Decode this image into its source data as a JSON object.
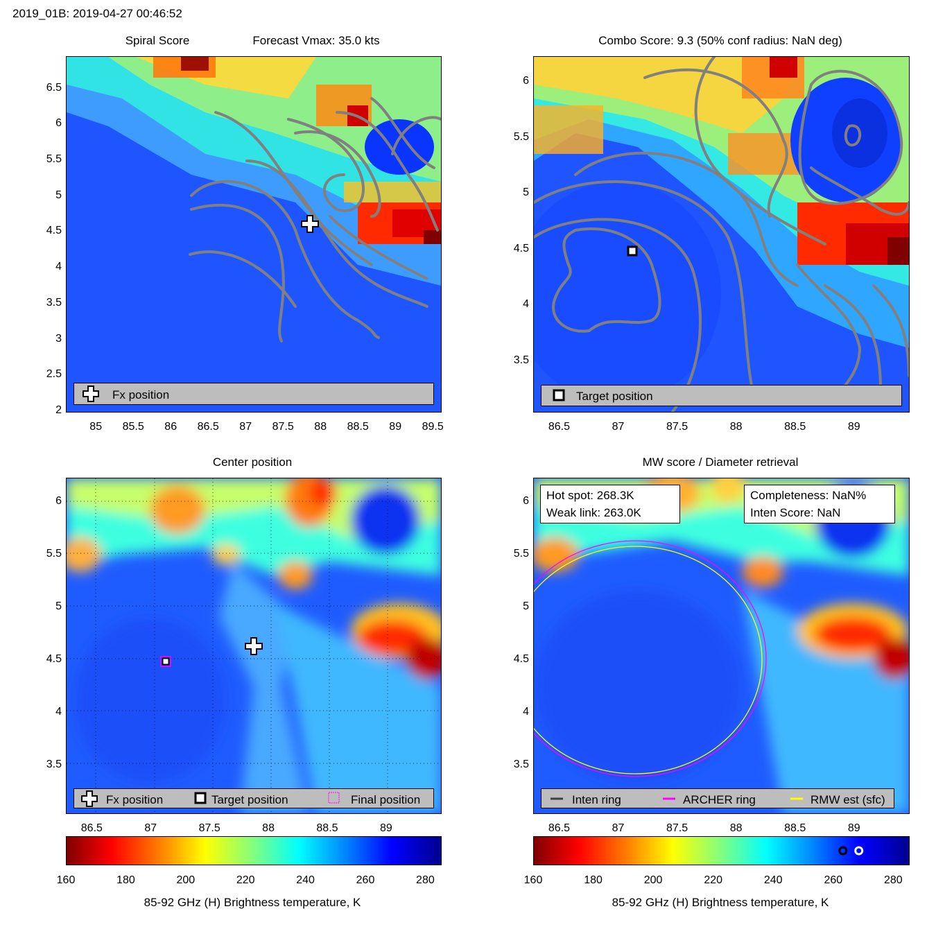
{
  "figure_title": "2019_01B: 2019-04-27 00:46:52",
  "colorbar_label": "85-92 GHz (H) Brightness temperature, K",
  "colorbar_ticks": [
    "160",
    "180",
    "200",
    "220",
    "240",
    "260",
    "280"
  ],
  "colorbar_range": [
    160,
    285
  ],
  "colorbar_markers": {
    "weak_link_K": 263.0,
    "hot_spot_K": 268.3
  },
  "colors": {
    "contour": "#808080",
    "legend_bg": "#bdbdbd",
    "archer_ring": "#ff00ff",
    "rmw_ring": "#ffff00",
    "inten_ring": "#404040",
    "final_marker": "#ff00ff"
  },
  "panels": {
    "spiral": {
      "title_left": "Spiral Score",
      "title_right": "Forecast Vmax: 35.0 kts",
      "legend": {
        "fx_label": "Fx position"
      }
    },
    "combo": {
      "title": "Combo Score: 9.3  (50% conf radius: NaN deg)",
      "legend": {
        "target_label": "Target position"
      }
    },
    "center": {
      "title": "Center position",
      "legend": {
        "fx_label": "Fx position",
        "target_label": "Target position",
        "final_label": "Final position"
      }
    },
    "mw": {
      "title": "MW score / Diameter retrieval",
      "hot_spot": "Hot spot: 268.3K",
      "weak_link": "Weak link: 263.0K",
      "completeness": "Completeness: NaN%",
      "inten_score": "Inten Score: NaN",
      "legend": {
        "inten_label": "Inten ring",
        "archer_label": "ARCHER ring",
        "rmw_label": "RMW est (sfc)"
      }
    }
  },
  "chart_data": [
    {
      "type": "heatmap",
      "name": "Spiral Score",
      "xlim": [
        84.6,
        89.6
      ],
      "ylim": [
        2.0,
        6.95
      ],
      "xticks": [
        "85",
        "85.5",
        "86",
        "86.5",
        "87",
        "87.5",
        "88",
        "88.5",
        "89",
        "89.5"
      ],
      "yticks": [
        "2",
        "2.5",
        "3",
        "3.5",
        "4",
        "4.5",
        "5",
        "5.5",
        "6",
        "6.5"
      ],
      "markers": {
        "fx_position": {
          "lon": 87.85,
          "lat": 4.62
        }
      }
    },
    {
      "type": "heatmap",
      "name": "Combo Score",
      "xlim": [
        86.28,
        89.46
      ],
      "ylim": [
        3.05,
        6.23
      ],
      "xticks": [
        "86.5",
        "87",
        "87.5",
        "88",
        "88.5",
        "89"
      ],
      "yticks": [
        "3.5",
        "4",
        "4.5",
        "5",
        "5.5",
        "6"
      ],
      "markers": {
        "target_position": {
          "lon": 87.1,
          "lat": 4.47
        }
      }
    },
    {
      "type": "heatmap",
      "name": "Center position",
      "xlim": [
        86.28,
        89.46
      ],
      "ylim": [
        3.05,
        6.23
      ],
      "xticks": [
        "86.5",
        "87",
        "87.5",
        "88",
        "88.5",
        "89"
      ],
      "yticks": [
        "3.5",
        "4",
        "4.5",
        "5",
        "5.5",
        "6"
      ],
      "grid": true,
      "markers": {
        "fx_position": {
          "lon": 87.85,
          "lat": 4.61
        },
        "target_position": {
          "lon": 87.1,
          "lat": 4.47
        },
        "final_position": {
          "lon": 87.1,
          "lat": 4.47
        }
      }
    },
    {
      "type": "heatmap",
      "name": "MW score / Diameter retrieval",
      "xlim": [
        86.28,
        89.46
      ],
      "ylim": [
        3.05,
        6.23
      ],
      "xticks": [
        "86.5",
        "87",
        "87.5",
        "88",
        "88.5",
        "89"
      ],
      "yticks": [
        "3.5",
        "4",
        "4.5",
        "5",
        "5.5",
        "6"
      ],
      "rings": {
        "archer": {
          "lon": 87.12,
          "lat": 4.47,
          "radius_deg": 1.12
        },
        "rmw_est": {
          "lon": 87.12,
          "lat": 4.47,
          "radius_deg": 1.08
        }
      }
    }
  ]
}
